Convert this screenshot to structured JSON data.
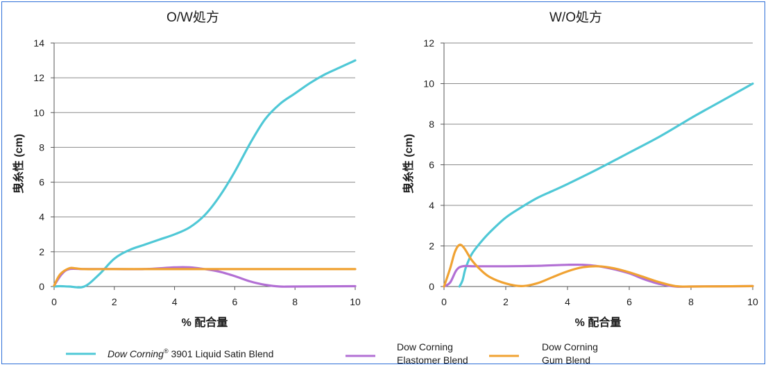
{
  "chart_data": [
    {
      "type": "line",
      "title": "O/W処方",
      "xlabel": "% 配合量",
      "ylabel": "曳糸性 (cm)",
      "xlim": [
        0,
        10
      ],
      "ylim": [
        0,
        14
      ],
      "xticks": [
        0,
        2,
        4,
        6,
        8,
        10
      ],
      "yticks": [
        0,
        2,
        4,
        6,
        8,
        10,
        12,
        14
      ],
      "grid": "horizontal",
      "series": [
        {
          "key": "liquid_satin",
          "color": "#4fc8d6",
          "points": [
            [
              0,
              0
            ],
            [
              0.2,
              0.02
            ],
            [
              0.5,
              0
            ],
            [
              1,
              0
            ],
            [
              1.5,
              0.7
            ],
            [
              2,
              1.6
            ],
            [
              2.5,
              2.1
            ],
            [
              3,
              2.4
            ],
            [
              3.5,
              2.7
            ],
            [
              4,
              3.0
            ],
            [
              4.5,
              3.4
            ],
            [
              5,
              4.1
            ],
            [
              5.5,
              5.2
            ],
            [
              6,
              6.6
            ],
            [
              6.5,
              8.2
            ],
            [
              7,
              9.6
            ],
            [
              7.5,
              10.5
            ],
            [
              8,
              11.1
            ],
            [
              8.5,
              11.7
            ],
            [
              9,
              12.2
            ],
            [
              9.5,
              12.6
            ],
            [
              10,
              13.0
            ]
          ]
        },
        {
          "key": "elastomer",
          "color": "#b26fd4",
          "points": [
            [
              0,
              0.05
            ],
            [
              0.25,
              0.7
            ],
            [
              0.5,
              1.0
            ],
            [
              1,
              1.0
            ],
            [
              2,
              1.0
            ],
            [
              3,
              1.0
            ],
            [
              4,
              1.1
            ],
            [
              4.5,
              1.1
            ],
            [
              5,
              1.0
            ],
            [
              5.5,
              0.85
            ],
            [
              6,
              0.6
            ],
            [
              6.5,
              0.3
            ],
            [
              7,
              0.1
            ],
            [
              7.5,
              0.0
            ],
            [
              8,
              0
            ],
            [
              10,
              0.02
            ]
          ]
        },
        {
          "key": "gum",
          "color": "#f0a232",
          "points": [
            [
              0,
              0.05
            ],
            [
              0.2,
              0.7
            ],
            [
              0.5,
              1.05
            ],
            [
              0.7,
              1.05
            ],
            [
              1,
              1.0
            ],
            [
              2,
              1.0
            ],
            [
              4,
              1.0
            ],
            [
              6,
              1.0
            ],
            [
              8,
              1.0
            ],
            [
              10,
              1.0
            ]
          ]
        }
      ]
    },
    {
      "type": "line",
      "title": "W/O処方",
      "xlabel": "% 配合量",
      "ylabel": "曳糸性 (cm)",
      "xlim": [
        0,
        10
      ],
      "ylim": [
        0,
        12
      ],
      "xticks": [
        0,
        2,
        4,
        6,
        8,
        10
      ],
      "yticks": [
        0,
        2,
        4,
        6,
        8,
        10,
        12
      ],
      "grid": "horizontal",
      "series": [
        {
          "key": "liquid_satin",
          "color": "#4fc8d6",
          "points": [
            [
              0.5,
              0
            ],
            [
              0.6,
              0.3
            ],
            [
              0.7,
              0.9
            ],
            [
              0.9,
              1.6
            ],
            [
              1.2,
              2.2
            ],
            [
              1.5,
              2.7
            ],
            [
              2,
              3.4
            ],
            [
              2.5,
              3.9
            ],
            [
              3,
              4.35
            ],
            [
              3.5,
              4.7
            ],
            [
              4,
              5.05
            ],
            [
              5,
              5.8
            ],
            [
              6,
              6.6
            ],
            [
              7,
              7.4
            ],
            [
              8,
              8.3
            ],
            [
              9,
              9.15
            ],
            [
              10,
              10.0
            ]
          ]
        },
        {
          "key": "elastomer",
          "color": "#b26fd4",
          "points": [
            [
              0,
              0
            ],
            [
              0.2,
              0.2
            ],
            [
              0.4,
              0.8
            ],
            [
              0.6,
              1.0
            ],
            [
              1,
              1.0
            ],
            [
              2,
              1.0
            ],
            [
              3,
              1.02
            ],
            [
              4,
              1.07
            ],
            [
              4.5,
              1.07
            ],
            [
              5,
              1.0
            ],
            [
              5.5,
              0.85
            ],
            [
              6,
              0.65
            ],
            [
              6.5,
              0.35
            ],
            [
              7,
              0.12
            ],
            [
              7.5,
              0.0
            ],
            [
              8,
              0
            ],
            [
              10,
              0.02
            ]
          ]
        },
        {
          "key": "gum",
          "color": "#f0a232",
          "points": [
            [
              0,
              0
            ],
            [
              0.2,
              0.9
            ],
            [
              0.35,
              1.7
            ],
            [
              0.5,
              2.05
            ],
            [
              0.65,
              1.9
            ],
            [
              0.9,
              1.3
            ],
            [
              1.2,
              0.8
            ],
            [
              1.5,
              0.45
            ],
            [
              2,
              0.15
            ],
            [
              2.5,
              0.02
            ],
            [
              3,
              0.15
            ],
            [
              3.5,
              0.45
            ],
            [
              4,
              0.75
            ],
            [
              4.5,
              0.95
            ],
            [
              5,
              1.0
            ],
            [
              5.5,
              0.9
            ],
            [
              6,
              0.7
            ],
            [
              6.5,
              0.45
            ],
            [
              7,
              0.2
            ],
            [
              7.5,
              0.02
            ],
            [
              8,
              0
            ],
            [
              10,
              0.02
            ]
          ]
        }
      ]
    }
  ],
  "legend": {
    "placement": "bottom",
    "items": [
      {
        "key": "liquid_satin",
        "label_italic": "Dow Corning",
        "label_sup": "®",
        "label_rest": " 3901 Liquid Satin Blend",
        "color": "#4fc8d6"
      },
      {
        "key": "elastomer",
        "label_line1": "Dow Corning",
        "label_line2": "Elastomer Blend",
        "color": "#b26fd4"
      },
      {
        "key": "gum",
        "label_line1": "Dow Corning",
        "label_line2": "Gum Blend",
        "color": "#f0a232"
      }
    ]
  }
}
